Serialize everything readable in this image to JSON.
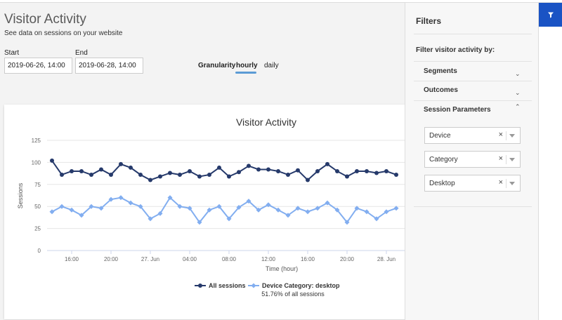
{
  "page": {
    "title": "Visitor Activity",
    "subtitle": "See data on sessions on your website"
  },
  "date_range": {
    "start_label": "Start",
    "start_value": "2019-06-26, 14:00",
    "end_label": "End",
    "end_value": "2019-06-28, 14:00"
  },
  "granularity": {
    "label": "Granularity",
    "options": [
      "hourly",
      "daily"
    ],
    "selected": "hourly"
  },
  "filters": {
    "title": "Filters",
    "subtitle": "Filter visitor activity by:",
    "sections": [
      {
        "label": "Segments",
        "expanded": false
      },
      {
        "label": "Outcomes",
        "expanded": false
      },
      {
        "label": "Session Parameters",
        "expanded": true
      }
    ],
    "session_parameters": [
      "Device",
      "Category",
      "Desktop"
    ]
  },
  "colors": {
    "all_sessions": "#263a6b",
    "desktop": "#82aef0",
    "accent": "#1a53c4"
  },
  "chart_data": {
    "type": "line",
    "title": "Visitor Activity",
    "xlabel": "Time (hour)",
    "ylabel": "Sessions",
    "ylim": [
      0,
      125
    ],
    "yticks": [
      0,
      25,
      50,
      75,
      100,
      125
    ],
    "x_tick_labels": [
      "16:00",
      "20:00",
      "27. Jun",
      "04:00",
      "08:00",
      "12:00",
      "16:00",
      "20:00",
      "28. Jun"
    ],
    "x_tick_hours": [
      16,
      20,
      24,
      28,
      32,
      36,
      40,
      44,
      48
    ],
    "x_hours": [
      14,
      15,
      16,
      17,
      18,
      19,
      20,
      21,
      22,
      23,
      24,
      25,
      26,
      27,
      28,
      29,
      30,
      31,
      32,
      33,
      34,
      35,
      36,
      37,
      38,
      39,
      40,
      41,
      42,
      43,
      44,
      45,
      46,
      47,
      48,
      49
    ],
    "series": [
      {
        "name": "All sessions",
        "values": [
          102,
          86,
          90,
          90,
          86,
          92,
          86,
          98,
          94,
          86,
          80,
          84,
          88,
          86,
          90,
          84,
          86,
          94,
          84,
          89,
          96,
          92,
          92,
          90,
          86,
          91,
          80,
          90,
          98,
          90,
          84,
          90,
          90,
          88,
          90,
          86
        ]
      },
      {
        "name": "Device Category: desktop",
        "values": [
          44,
          50,
          46,
          40,
          50,
          48,
          58,
          60,
          54,
          50,
          36,
          42,
          60,
          50,
          48,
          32,
          46,
          50,
          36,
          49,
          56,
          46,
          52,
          46,
          40,
          48,
          44,
          48,
          54,
          46,
          32,
          48,
          44,
          36,
          44,
          48
        ]
      }
    ],
    "legend_note": "51.76% of all sessions",
    "legend_position": "bottom-center"
  }
}
